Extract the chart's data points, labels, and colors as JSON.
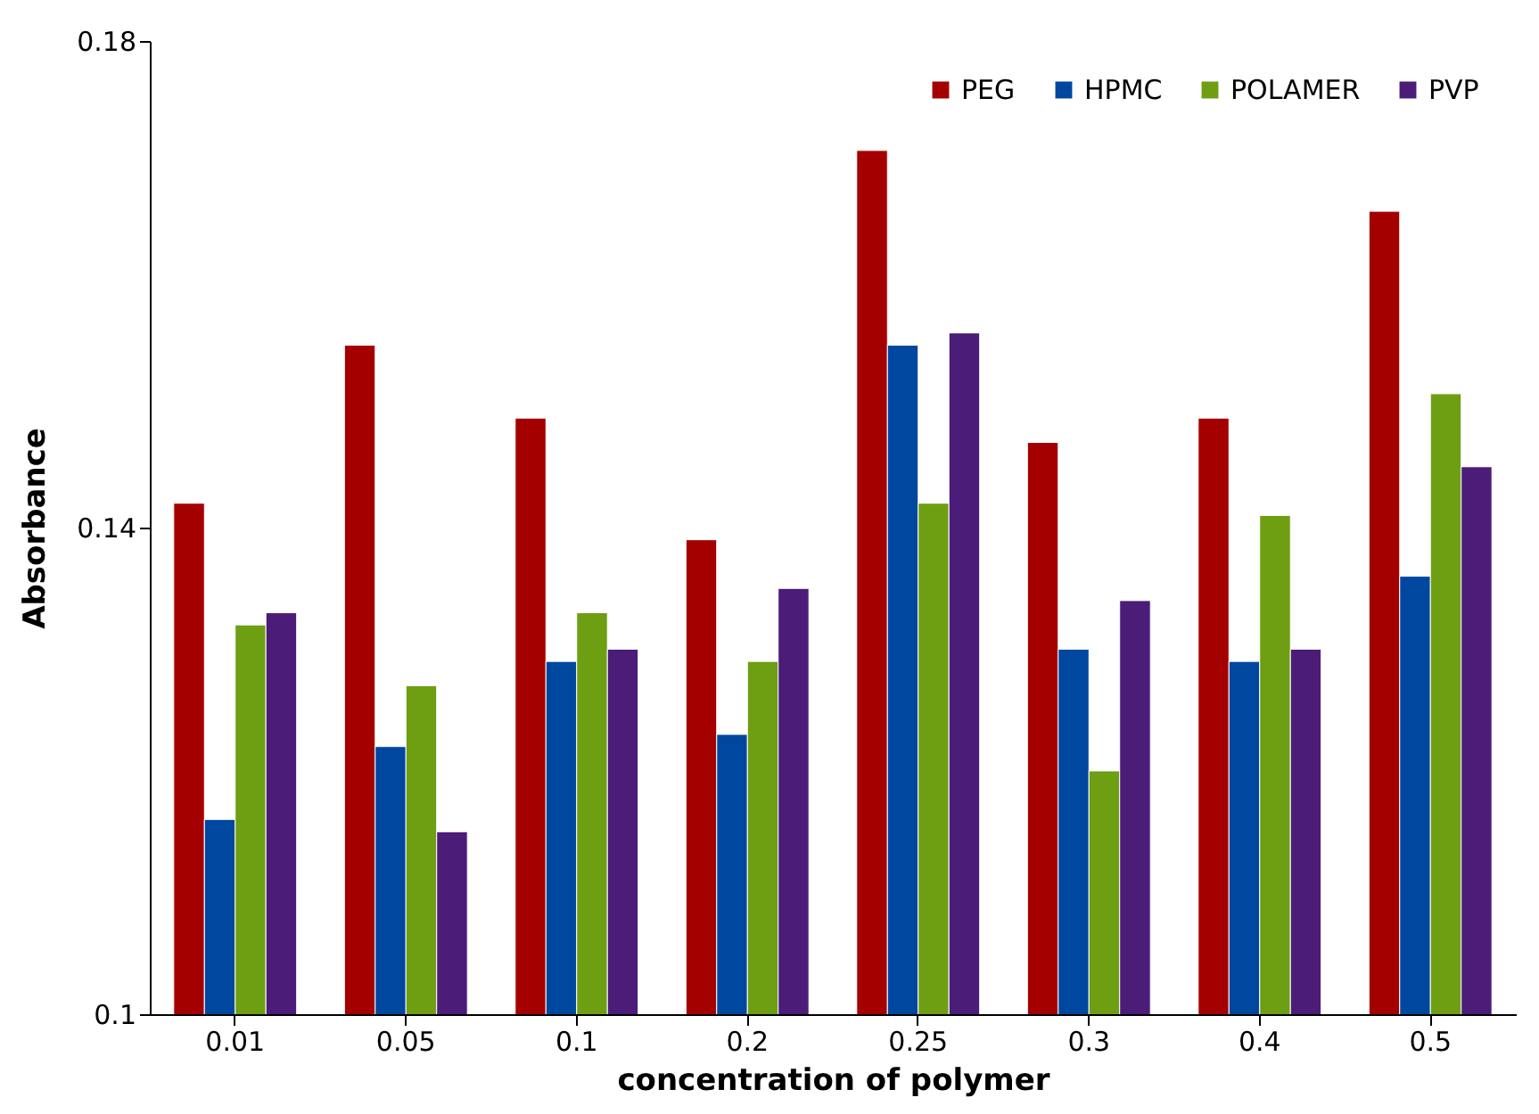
{
  "chart_data": {
    "type": "bar",
    "xlabel": "concentration of polymer",
    "ylabel": "Absorbance",
    "categories": [
      "0.01",
      "0.05",
      "0.1",
      "0.2",
      "0.25",
      "0.3",
      "0.4",
      "0.5"
    ],
    "series": [
      {
        "name": "PEG",
        "color": "#a50000",
        "values": [
          0.142,
          0.155,
          0.149,
          0.139,
          0.171,
          0.147,
          0.149,
          0.166
        ]
      },
      {
        "name": "HPMC",
        "color": "#0047a0",
        "values": [
          0.116,
          0.122,
          0.129,
          0.123,
          0.155,
          0.13,
          0.129,
          0.136
        ]
      },
      {
        "name": "POLAMER",
        "color": "#6e9e12",
        "values": [
          0.132,
          0.127,
          0.133,
          0.129,
          0.142,
          0.12,
          0.141,
          0.151
        ]
      },
      {
        "name": "PVP",
        "color": "#4b1c78",
        "values": [
          0.133,
          0.115,
          0.13,
          0.135,
          0.156,
          0.134,
          0.13,
          0.145
        ]
      }
    ],
    "ylim": [
      0.1,
      0.18
    ],
    "yticks": [
      0.1,
      0.14,
      0.18
    ],
    "grid": false,
    "legend": "top right"
  }
}
